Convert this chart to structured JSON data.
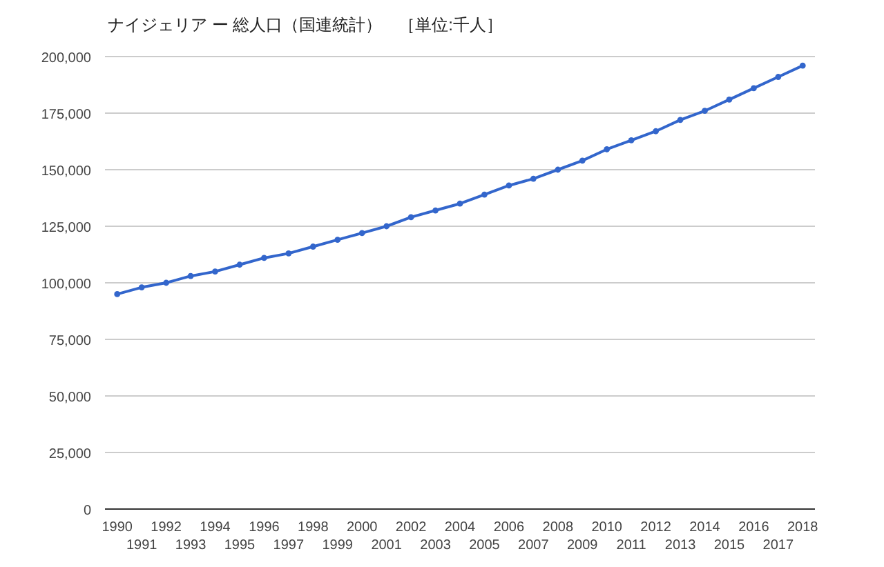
{
  "chart_data": {
    "type": "line",
    "title": "ナイジェリア ー 総人口（国連統計）　［単位:千人］",
    "categories": [
      "1990",
      "1991",
      "1992",
      "1993",
      "1994",
      "1995",
      "1996",
      "1997",
      "1998",
      "1999",
      "2000",
      "2001",
      "2002",
      "2003",
      "2004",
      "2005",
      "2006",
      "2007",
      "2008",
      "2009",
      "2010",
      "2011",
      "2012",
      "2013",
      "2014",
      "2015",
      "2016",
      "2017",
      "2018"
    ],
    "series": [
      {
        "color": "#3366cc",
        "values": [
          95000,
          98000,
          100000,
          103000,
          105000,
          108000,
          111000,
          113000,
          116000,
          119000,
          122000,
          125000,
          129000,
          132000,
          135000,
          139000,
          143000,
          146000,
          150000,
          154000,
          159000,
          163000,
          167000,
          172000,
          176000,
          181000,
          186000,
          191000,
          196000
        ]
      }
    ],
    "ylim": [
      0,
      200000
    ],
    "yticks": [
      {
        "value": 0,
        "label": "0"
      },
      {
        "value": 25000,
        "label": "25,000"
      },
      {
        "value": 50000,
        "label": "50,000"
      },
      {
        "value": 75000,
        "label": "75,000"
      },
      {
        "value": 100000,
        "label": "100,000"
      },
      {
        "value": 125000,
        "label": "125,000"
      },
      {
        "value": 150000,
        "label": "150,000"
      },
      {
        "value": 175000,
        "label": "175,000"
      },
      {
        "value": 200000,
        "label": "200,000"
      }
    ],
    "grid": "y",
    "marker": "circle",
    "line_style": "solid"
  }
}
